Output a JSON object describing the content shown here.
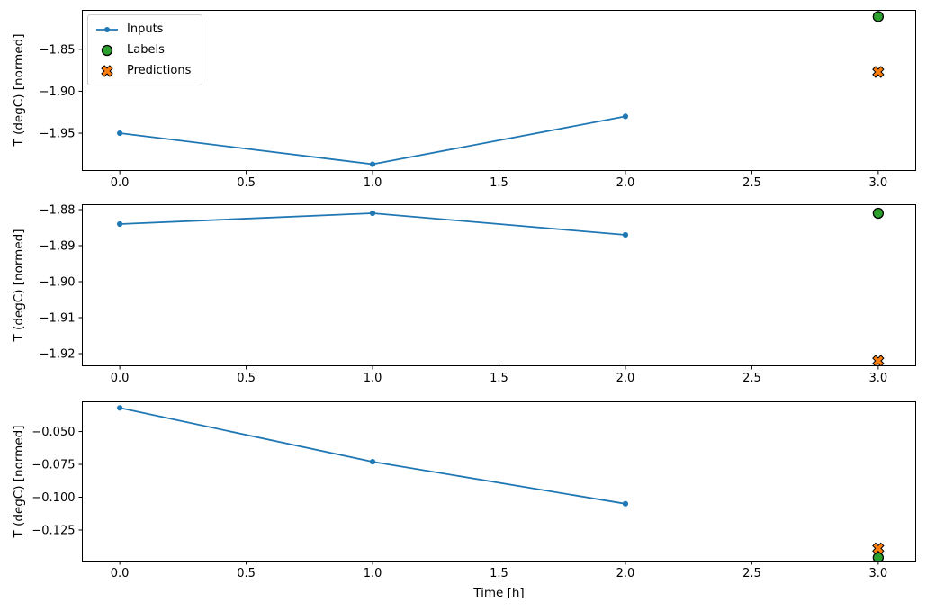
{
  "figure": {
    "background": "#ffffff",
    "xlabel": "Time [h]",
    "ylabel": "T (degC) [normed]",
    "legend": {
      "items": [
        {
          "label": "Inputs",
          "marker": "line-dot",
          "color": "#1f77b4"
        },
        {
          "label": "Labels",
          "marker": "circle",
          "color": "#2ca02c"
        },
        {
          "label": "Predictions",
          "marker": "x-cross",
          "color": "#ff7f0e"
        }
      ]
    }
  },
  "colors": {
    "inputs": "#1f77b4",
    "labels": "#2ca02c",
    "predictions": "#ff7f0e",
    "axis": "#000000",
    "legend_border": "#cccccc"
  },
  "chart_data": [
    {
      "type": "line",
      "title": "",
      "xlabel": "",
      "ylabel": "T (degC) [normed]",
      "xlim": [
        -0.15,
        3.15
      ],
      "ylim": [
        -1.995,
        -1.803
      ],
      "grid": false,
      "legend_position": "upper left",
      "xticks": [
        {
          "v": 0.0,
          "label": "0.0"
        },
        {
          "v": 0.5,
          "label": "0.5"
        },
        {
          "v": 1.0,
          "label": "1.0"
        },
        {
          "v": 1.5,
          "label": "1.5"
        },
        {
          "v": 2.0,
          "label": "2.0"
        },
        {
          "v": 2.5,
          "label": "2.5"
        },
        {
          "v": 3.0,
          "label": "3.0"
        }
      ],
      "yticks": [
        {
          "v": -1.85,
          "label": "−1.85"
        },
        {
          "v": -1.9,
          "label": "−1.90"
        },
        {
          "v": -1.95,
          "label": "−1.95"
        }
      ],
      "series": [
        {
          "name": "Inputs",
          "kind": "line-dot",
          "color": "#1f77b4",
          "x": [
            0,
            1,
            2
          ],
          "y": [
            -1.95,
            -1.987,
            -1.93
          ]
        },
        {
          "name": "Labels",
          "kind": "circle",
          "color": "#2ca02c",
          "x": [
            3
          ],
          "y": [
            -1.811
          ]
        },
        {
          "name": "Predictions",
          "kind": "x-cross",
          "color": "#ff7f0e",
          "x": [
            3
          ],
          "y": [
            -1.877
          ]
        }
      ]
    },
    {
      "type": "line",
      "title": "",
      "xlabel": "",
      "ylabel": "T (degC) [normed]",
      "xlim": [
        -0.15,
        3.15
      ],
      "ylim": [
        -1.9235,
        -1.8785
      ],
      "grid": false,
      "legend_position": "none",
      "xticks": [
        {
          "v": 0.0,
          "label": "0.0"
        },
        {
          "v": 0.5,
          "label": "0.5"
        },
        {
          "v": 1.0,
          "label": "1.0"
        },
        {
          "v": 1.5,
          "label": "1.5"
        },
        {
          "v": 2.0,
          "label": "2.0"
        },
        {
          "v": 2.5,
          "label": "2.5"
        },
        {
          "v": 3.0,
          "label": "3.0"
        }
      ],
      "yticks": [
        {
          "v": -1.88,
          "label": "−1.88"
        },
        {
          "v": -1.89,
          "label": "−1.89"
        },
        {
          "v": -1.9,
          "label": "−1.90"
        },
        {
          "v": -1.91,
          "label": "−1.91"
        },
        {
          "v": -1.92,
          "label": "−1.92"
        }
      ],
      "series": [
        {
          "name": "Inputs",
          "kind": "line-dot",
          "color": "#1f77b4",
          "x": [
            0,
            1,
            2
          ],
          "y": [
            -1.884,
            -1.881,
            -1.887
          ]
        },
        {
          "name": "Labels",
          "kind": "circle",
          "color": "#2ca02c",
          "x": [
            3
          ],
          "y": [
            -1.881
          ]
        },
        {
          "name": "Predictions",
          "kind": "x-cross",
          "color": "#ff7f0e",
          "x": [
            3
          ],
          "y": [
            -1.922
          ]
        }
      ]
    },
    {
      "type": "line",
      "title": "",
      "xlabel": "Time [h]",
      "ylabel": "T (degC) [normed]",
      "xlim": [
        -0.15,
        3.15
      ],
      "ylim": [
        -0.149,
        -0.027
      ],
      "grid": false,
      "legend_position": "none",
      "xticks": [
        {
          "v": 0.0,
          "label": "0.0"
        },
        {
          "v": 0.5,
          "label": "0.5"
        },
        {
          "v": 1.0,
          "label": "1.0"
        },
        {
          "v": 1.5,
          "label": "1.5"
        },
        {
          "v": 2.0,
          "label": "2.0"
        },
        {
          "v": 2.5,
          "label": "2.5"
        },
        {
          "v": 3.0,
          "label": "3.0"
        }
      ],
      "yticks": [
        {
          "v": -0.05,
          "label": "−0.050"
        },
        {
          "v": -0.075,
          "label": "−0.075"
        },
        {
          "v": -0.1,
          "label": "−0.100"
        },
        {
          "v": -0.125,
          "label": "−0.125"
        }
      ],
      "series": [
        {
          "name": "Inputs",
          "kind": "line-dot",
          "color": "#1f77b4",
          "x": [
            0,
            1,
            2
          ],
          "y": [
            -0.032,
            -0.073,
            -0.105
          ]
        },
        {
          "name": "Labels",
          "kind": "circle",
          "color": "#2ca02c",
          "x": [
            3
          ],
          "y": [
            -0.146
          ]
        },
        {
          "name": "Predictions",
          "kind": "x-cross",
          "color": "#ff7f0e",
          "x": [
            3
          ],
          "y": [
            -0.139
          ]
        }
      ]
    }
  ]
}
